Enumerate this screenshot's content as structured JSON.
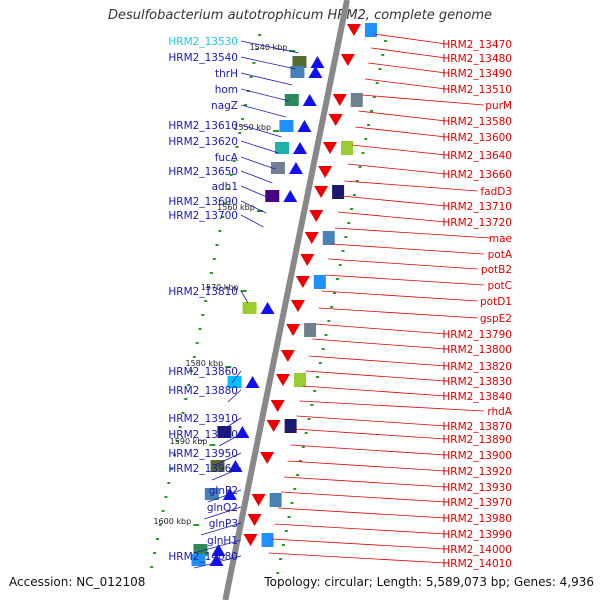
{
  "title": "Desulfobacterium autotrophicum HRM2, complete genome",
  "footer": {
    "accession": "Accession: NC_012108",
    "topology": "Topology: circular; Length: 5,589,073 bp; Genes: 4,936"
  },
  "colors": {
    "forward_label": "#1a1ab0",
    "highlight_label": "#1ec8e6",
    "reverse_label": "#e00000",
    "forward_arrow": "#1010ee",
    "reverse_arrow": "#ee0000",
    "backbone": "#888888",
    "tick": "#2a9a2a"
  },
  "kbp_marks": [
    "1540 kbp",
    "1550 kbp",
    "1560 kbp",
    "1570 kbp",
    "1580 kbp",
    "1590 kbp",
    "1600 kbp"
  ],
  "left_genes": [
    "HRM2_13530",
    "HRM2_13540",
    "thrH",
    "hom",
    "nagZ",
    "HRM2_13610",
    "HRM2_13620",
    "fucA",
    "HRM2_13650",
    "adh1",
    "HRM2_13690",
    "HRM2_13700",
    "HRM2_13810",
    "HRM2_13860",
    "HRM2_13880",
    "HRM2_13910",
    "HRM2_13940",
    "HRM2_13950",
    "HRM2_13960",
    "glnP2",
    "glnQ2",
    "glnP3",
    "glnH1",
    "HRM2_14080"
  ],
  "right_genes": [
    "HRM2_13470",
    "HRM2_13480",
    "HRM2_13490",
    "HRM2_13510",
    "purM",
    "HRM2_13580",
    "HRM2_13600",
    "HRM2_13640",
    "HRM2_13660",
    "fadD3",
    "HRM2_13710",
    "HRM2_13720",
    "mae",
    "potA",
    "potB2",
    "potC",
    "potD1",
    "gspE2",
    "HRM2_13790",
    "HRM2_13800",
    "HRM2_13820",
    "HRM2_13830",
    "HRM2_13840",
    "rhdA",
    "HRM2_13870",
    "HRM2_13890",
    "HRM2_13900",
    "HRM2_13920",
    "HRM2_13930",
    "HRM2_13970",
    "HRM2_13980",
    "HRM2_13990",
    "HRM2_14000",
    "HRM2_14010"
  ]
}
